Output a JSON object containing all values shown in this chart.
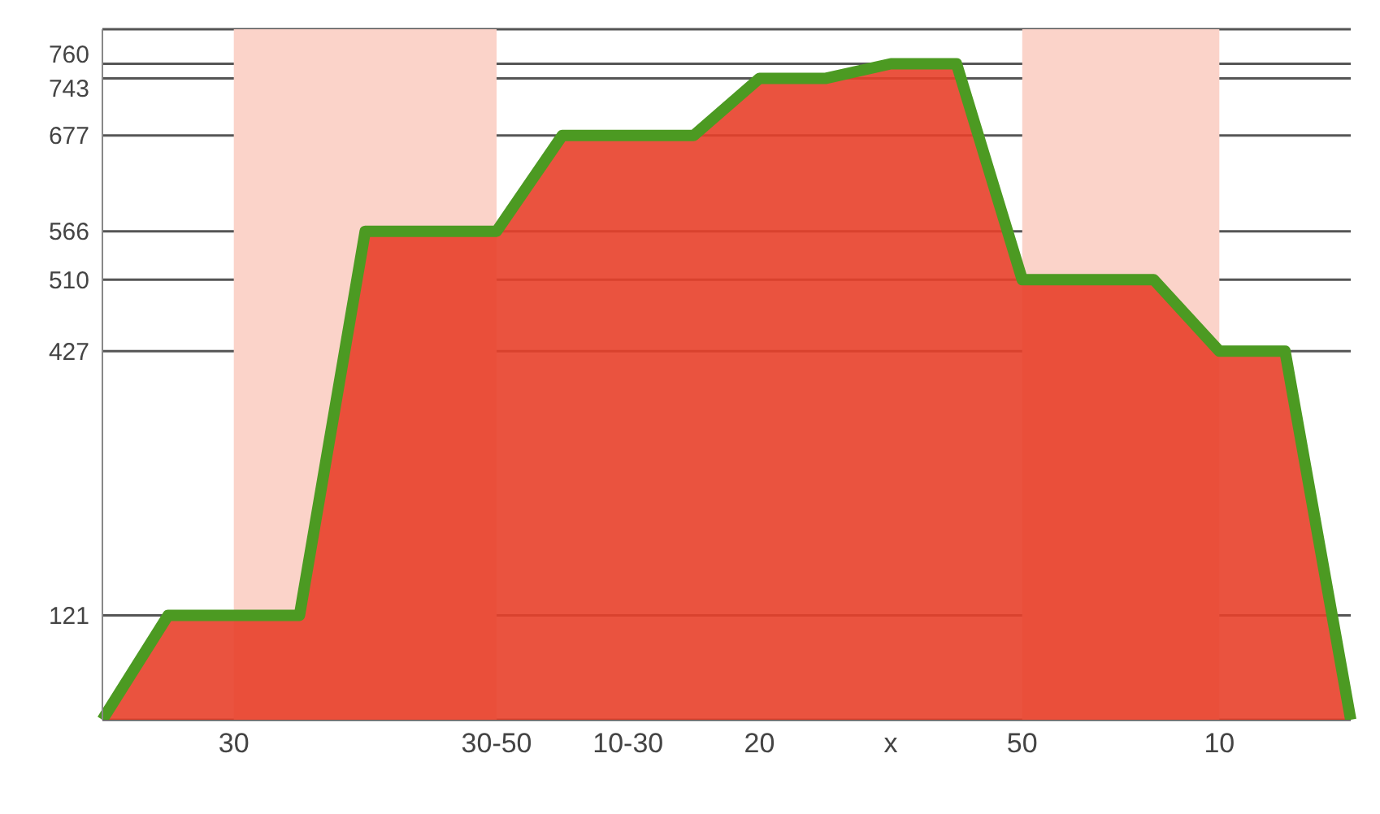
{
  "chart_data": {
    "type": "area",
    "categories": [
      null,
      null,
      "30",
      null,
      null,
      null,
      "30-50",
      null,
      "10-30",
      null,
      "20",
      null,
      "x",
      null,
      "50",
      null,
      null,
      "10",
      null,
      null
    ],
    "series": [
      {
        "color": "#e8402a",
        "values": [
          0,
          121,
          121,
          121,
          566,
          566,
          566,
          677,
          677,
          677,
          743,
          743,
          760,
          760,
          510,
          510,
          510,
          427,
          427,
          0
        ]
      }
    ],
    "ylim": [
      0,
      800
    ],
    "yticks": [
      121,
      427,
      510,
      566,
      677,
      743,
      760
    ],
    "grid": "y",
    "bands": [
      {
        "axis": "x",
        "from": "30",
        "to": "30-50",
        "color": "#fbd3c9"
      },
      {
        "axis": "x",
        "from": "50",
        "to": "10",
        "color": "#fbd3c9"
      }
    ]
  }
}
